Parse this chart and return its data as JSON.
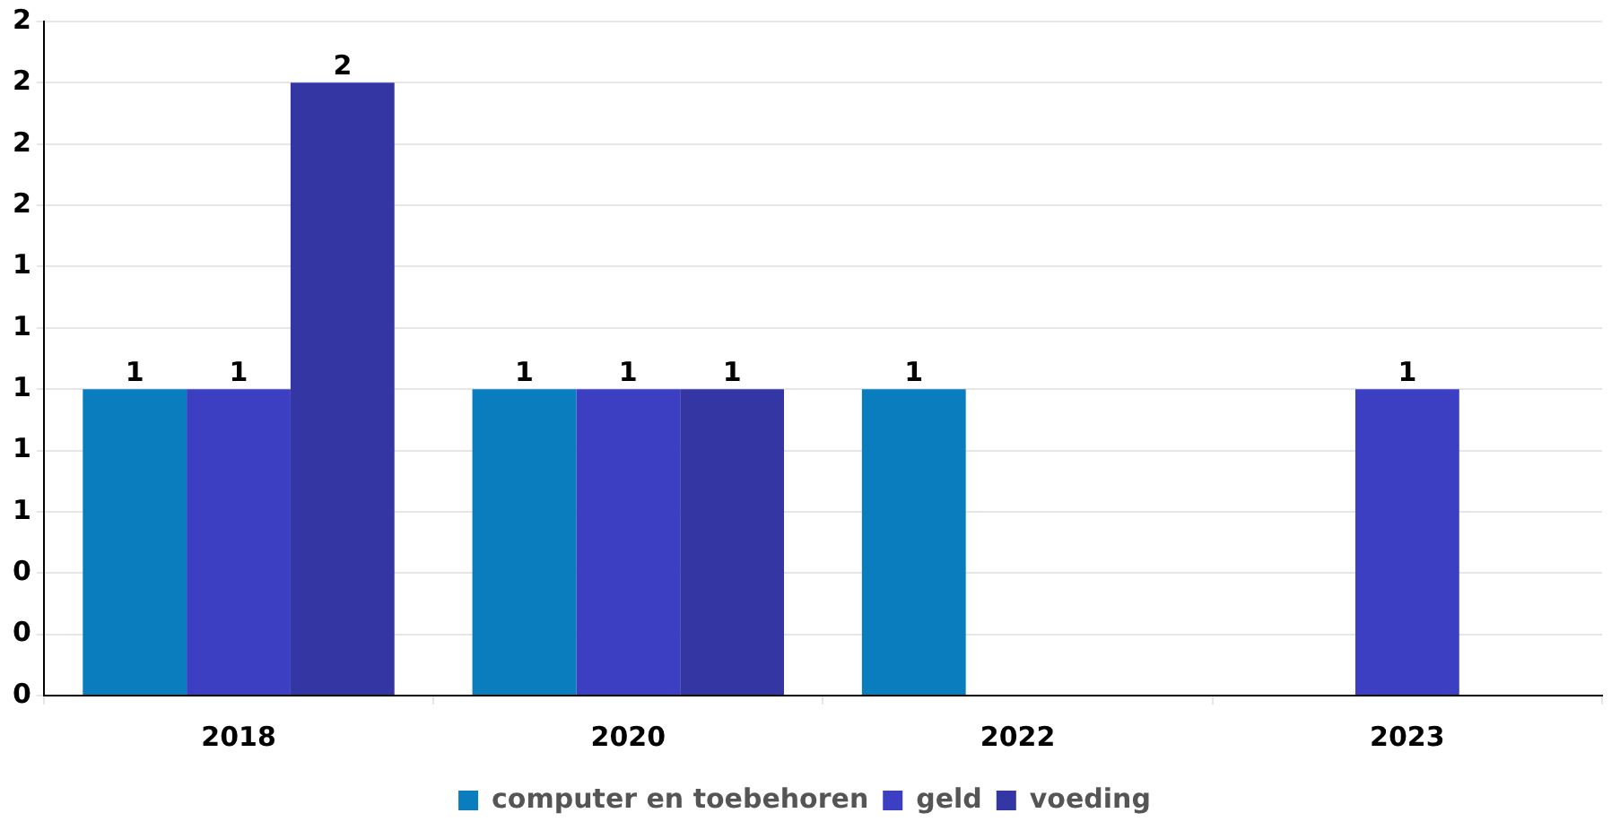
{
  "chart_data": {
    "type": "bar",
    "categories": [
      "2018",
      "2020",
      "2022",
      "2023"
    ],
    "series": [
      {
        "name": "computer en toebehoren",
        "color": "#0a7dbf",
        "values": [
          1,
          1,
          1,
          null
        ]
      },
      {
        "name": "geld",
        "color": "#3c3fc2",
        "values": [
          1,
          1,
          null,
          1
        ]
      },
      {
        "name": "voeding",
        "color": "#3336a3",
        "values": [
          2,
          1,
          null,
          null
        ]
      }
    ],
    "ylim": [
      0,
      2.2
    ],
    "yticks": [
      {
        "value": 0,
        "label": "0"
      },
      {
        "value": 0.2,
        "label": "0"
      },
      {
        "value": 0.4,
        "label": "0"
      },
      {
        "value": 0.6,
        "label": "1"
      },
      {
        "value": 0.8,
        "label": "1"
      },
      {
        "value": 1,
        "label": "1"
      },
      {
        "value": 1.2,
        "label": "1"
      },
      {
        "value": 1.4,
        "label": "1"
      },
      {
        "value": 1.6,
        "label": "2"
      },
      {
        "value": 1.8,
        "label": "2"
      },
      {
        "value": 2,
        "label": "2"
      },
      {
        "value": 2.2,
        "label": "2"
      }
    ],
    "grid": "y",
    "legend": "bottom",
    "data_labels": true
  }
}
